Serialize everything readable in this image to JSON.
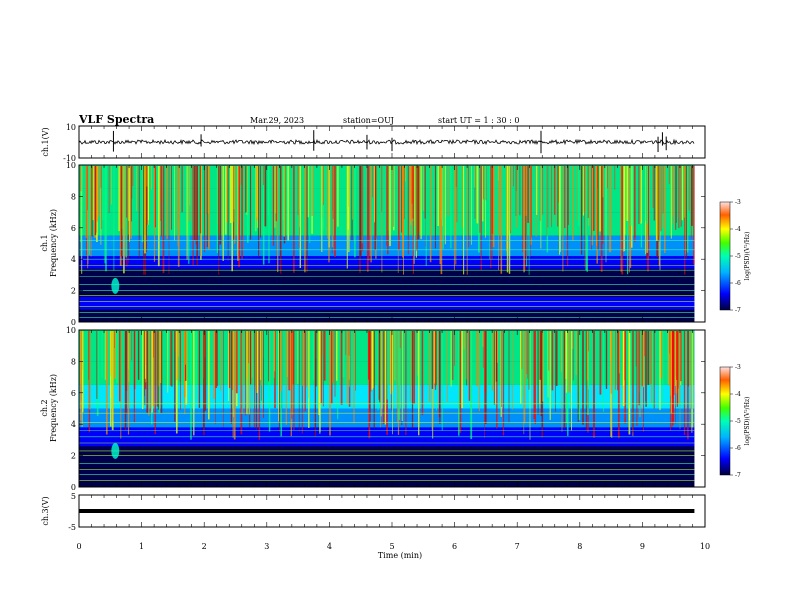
{
  "header": {
    "title": "VLF Spectra",
    "date": "Mar.29, 2023",
    "station": "station=OUJ",
    "start": "start  UT =   1 : 30 : 0"
  },
  "colors": {
    "spectrogram_scale": [
      "#00003c",
      "#0000ff",
      "#00a0ff",
      "#00ffff",
      "#00ff80",
      "#ffff00",
      "#ff8000",
      "#ff0000",
      "#b00000"
    ],
    "trace": "#000000"
  },
  "chart_data": [
    {
      "type": "line",
      "panel": "ch1-waveform",
      "ylabel": "ch.1(V)",
      "ylim": [
        -10,
        10
      ],
      "yticks": [
        "10",
        "-10"
      ],
      "x_unit": "min",
      "xlim": [
        0,
        10
      ],
      "data_end_min": 9.83,
      "baseline_v": 0,
      "spike_times_min": [
        0.55,
        1.95,
        3.75,
        4.6,
        5.0,
        7.38,
        9.25,
        9.32,
        9.38
      ]
    },
    {
      "type": "heatmap",
      "panel": "ch1-spectrogram",
      "ylabel": "ch.1\nFrequency (kHz)",
      "ylim": [
        0,
        10
      ],
      "yticks": [
        "0",
        "2",
        "4",
        "6",
        "8",
        "10"
      ],
      "xlim": [
        0,
        10
      ],
      "data_end_min": 9.83,
      "colorbar": {
        "label": "log(PSD)(V²/Hz)",
        "ticks": [
          "-3",
          "-4",
          "-5",
          "-6",
          "-7"
        ],
        "range": [
          -7,
          -3
        ]
      }
    },
    {
      "type": "heatmap",
      "panel": "ch2-spectrogram",
      "ylabel": "ch.2\nFrequency (kHz)",
      "ylim": [
        0,
        10
      ],
      "yticks": [
        "0",
        "2",
        "4",
        "6",
        "8",
        "10"
      ],
      "xlim": [
        0,
        10
      ],
      "data_end_min": 9.83,
      "colorbar": {
        "label": "log(PSD)(V²/Hz)",
        "ticks": [
          "-3",
          "-4",
          "-5",
          "-6",
          "-7"
        ],
        "range": [
          -7,
          -3
        ]
      }
    },
    {
      "type": "line",
      "panel": "ch3-waveform",
      "ylabel": "ch.3(V)",
      "ylim": [
        -5,
        5
      ],
      "yticks": [
        "5",
        "-5"
      ],
      "xlim": [
        0,
        10
      ],
      "data_end_min": 9.83,
      "baseline_v": 0,
      "xlabel": "Time  (min)",
      "xticks": [
        "0",
        "1",
        "2",
        "3",
        "4",
        "5",
        "6",
        "7",
        "8",
        "9",
        "10"
      ]
    }
  ]
}
